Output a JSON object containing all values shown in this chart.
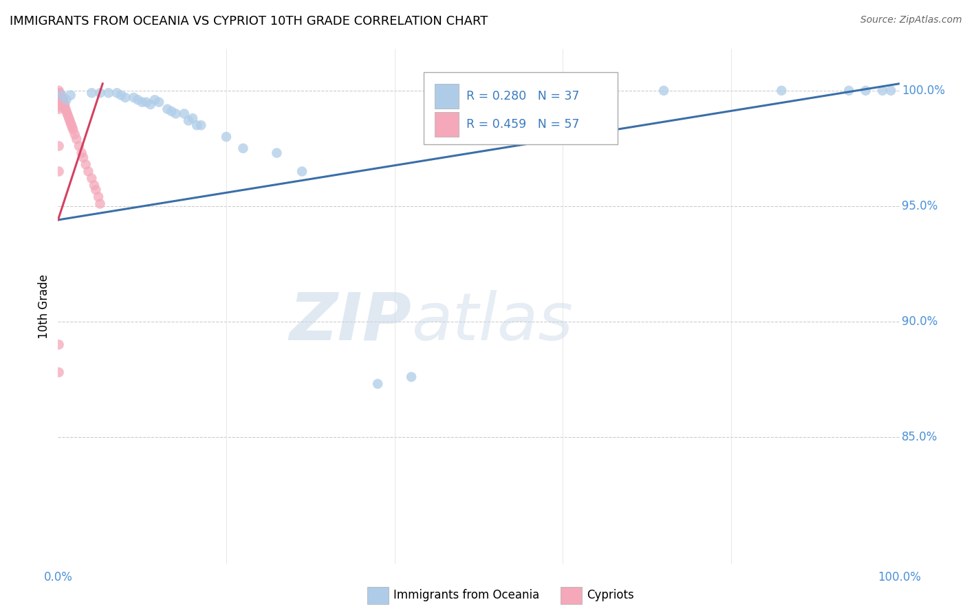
{
  "title": "IMMIGRANTS FROM OCEANIA VS CYPRIOT 10TH GRADE CORRELATION CHART",
  "source": "Source: ZipAtlas.com",
  "ylabel": "10th Grade",
  "legend_blue_label": "Immigrants from Oceania",
  "legend_pink_label": "Cypriots",
  "R_blue": 0.28,
  "N_blue": 37,
  "R_pink": 0.459,
  "N_pink": 57,
  "blue_color": "#aecce8",
  "pink_color": "#f4a8ba",
  "blue_line_color": "#3a6fa8",
  "pink_line_color": "#d44060",
  "ytick_labels": [
    "85.0%",
    "90.0%",
    "95.0%",
    "100.0%"
  ],
  "ytick_values": [
    0.85,
    0.9,
    0.95,
    1.0
  ],
  "ymin": 0.795,
  "ymax": 1.018,
  "xmin": 0.0,
  "xmax": 1.0,
  "blue_scatter_x": [
    0.005,
    0.01,
    0.015,
    0.04,
    0.05,
    0.06,
    0.07,
    0.075,
    0.08,
    0.09,
    0.095,
    0.1,
    0.105,
    0.11,
    0.115,
    0.12,
    0.13,
    0.135,
    0.14,
    0.15,
    0.155,
    0.16,
    0.165,
    0.17,
    0.2,
    0.22,
    0.26,
    0.29,
    0.38,
    0.42,
    0.64,
    0.72,
    0.86,
    0.94,
    0.96,
    0.98,
    0.99
  ],
  "blue_scatter_y": [
    0.998,
    0.996,
    0.998,
    0.999,
    0.999,
    0.999,
    0.999,
    0.998,
    0.997,
    0.997,
    0.996,
    0.995,
    0.995,
    0.994,
    0.996,
    0.995,
    0.992,
    0.991,
    0.99,
    0.99,
    0.987,
    0.988,
    0.985,
    0.985,
    0.98,
    0.975,
    0.973,
    0.965,
    0.873,
    0.876,
    0.998,
    1.0,
    1.0,
    1.0,
    1.0,
    1.0,
    1.0
  ],
  "pink_scatter_x": [
    0.001,
    0.001,
    0.001,
    0.001,
    0.001,
    0.001,
    0.001,
    0.001,
    0.001,
    0.001,
    0.001,
    0.001,
    0.001,
    0.002,
    0.002,
    0.002,
    0.002,
    0.002,
    0.003,
    0.003,
    0.003,
    0.004,
    0.004,
    0.005,
    0.005,
    0.006,
    0.006,
    0.007,
    0.007,
    0.008,
    0.008,
    0.009,
    0.01,
    0.011,
    0.012,
    0.013,
    0.014,
    0.015,
    0.016,
    0.017,
    0.018,
    0.02,
    0.022,
    0.025,
    0.028,
    0.03,
    0.033,
    0.036,
    0.04,
    0.043,
    0.045,
    0.048,
    0.05,
    0.001,
    0.001,
    0.001,
    0.001
  ],
  "pink_scatter_y": [
    1.0,
    0.999,
    0.999,
    0.998,
    0.998,
    0.997,
    0.997,
    0.996,
    0.996,
    0.995,
    0.994,
    0.993,
    0.992,
    0.999,
    0.998,
    0.997,
    0.996,
    0.995,
    0.998,
    0.997,
    0.996,
    0.997,
    0.996,
    0.997,
    0.996,
    0.996,
    0.995,
    0.995,
    0.994,
    0.994,
    0.993,
    0.992,
    0.991,
    0.99,
    0.989,
    0.988,
    0.987,
    0.986,
    0.985,
    0.984,
    0.983,
    0.981,
    0.979,
    0.976,
    0.973,
    0.971,
    0.968,
    0.965,
    0.962,
    0.959,
    0.957,
    0.954,
    0.951,
    0.976,
    0.965,
    0.89,
    0.878
  ],
  "blue_trendline_x": [
    0.0,
    1.0
  ],
  "blue_trendline_y": [
    0.944,
    1.003
  ],
  "pink_trendline_x": [
    0.0,
    0.053
  ],
  "pink_trendline_y": [
    0.944,
    1.003
  ]
}
